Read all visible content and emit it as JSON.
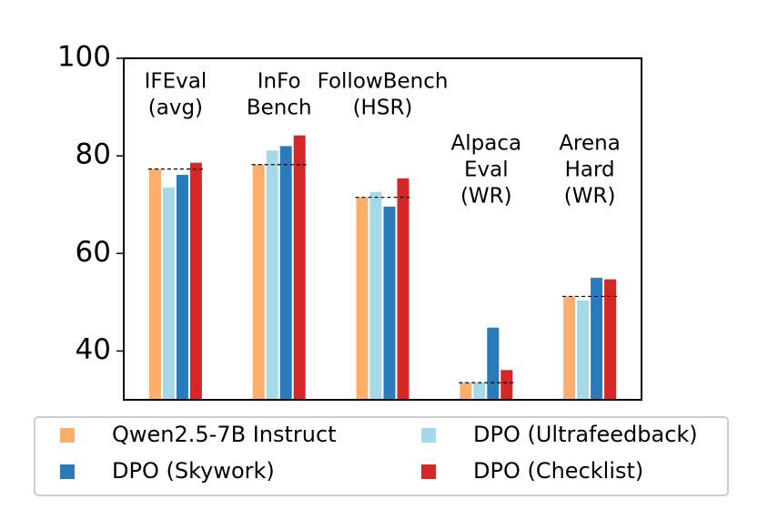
{
  "chart_data": {
    "type": "bar",
    "categories": [
      [
        "IFEval",
        "(avg)"
      ],
      [
        "InFo",
        "Bench"
      ],
      [
        "FollowBench",
        "(HSR)"
      ],
      [
        "Alpaca",
        "Eval",
        "(WR)"
      ],
      [
        "Arena",
        "Hard",
        "(WR)"
      ]
    ],
    "series": [
      {
        "name": "Qwen2.5-7B Instruct",
        "color": "#fdae6b",
        "values": [
          77.3,
          78.2,
          71.5,
          33.5,
          51.2
        ]
      },
      {
        "name": "DPO (Ultrafeedback)",
        "color": "#a6d9e8",
        "values": [
          73.5,
          81.1,
          72.6,
          33.5,
          50.4
        ]
      },
      {
        "name": "DPO (Skywork)",
        "color": "#2b7bba",
        "values": [
          76.1,
          82.0,
          69.6,
          44.8,
          55.0
        ]
      },
      {
        "name": "DPO (Checklist)",
        "color": "#d62728",
        "values": [
          78.6,
          84.2,
          75.4,
          36.1,
          54.7
        ]
      }
    ],
    "ylim": [
      30,
      100
    ],
    "yticks": [
      40,
      60,
      80,
      100
    ]
  }
}
